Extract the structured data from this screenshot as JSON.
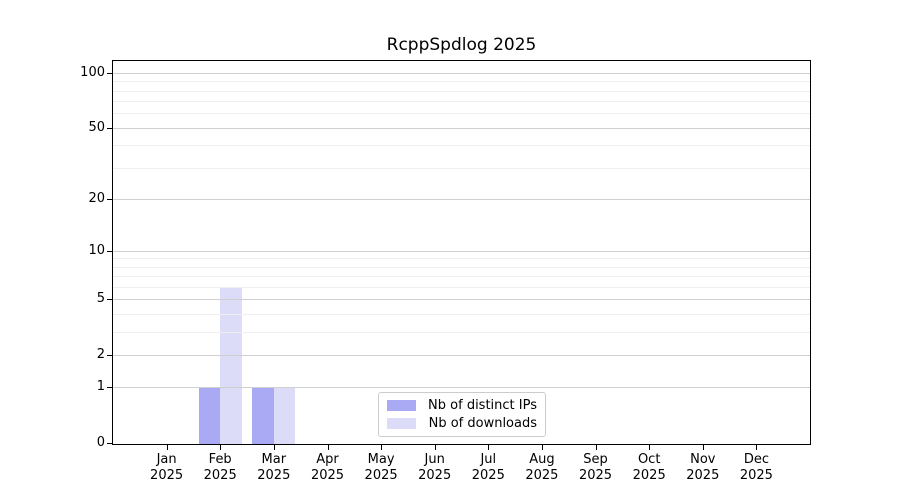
{
  "title": "RcppSpdlog 2025",
  "colors": {
    "distinct_ips": "#aaaaf4",
    "downloads": "#dcdcf8",
    "grid_major": "#cfcfcf",
    "grid_minor": "#efefef",
    "axis": "#000000",
    "background": "#ffffff",
    "legend_border": "#cccccc"
  },
  "legend": {
    "items": [
      {
        "label": "Nb of distinct IPs",
        "color": "#aaaaf4"
      },
      {
        "label": "Nb of downloads",
        "color": "#dcdcf8"
      }
    ]
  },
  "chart_data": {
    "type": "bar",
    "title": "RcppSpdlog 2025",
    "xlabel": "",
    "ylabel": "",
    "x_tick_months": [
      "Jan",
      "Feb",
      "Mar",
      "Apr",
      "May",
      "Jun",
      "Jul",
      "Aug",
      "Sep",
      "Oct",
      "Nov",
      "Dec"
    ],
    "x_tick_year": "2025",
    "categories": [
      "Jan 2025",
      "Feb 2025",
      "Mar 2025",
      "Apr 2025",
      "May 2025",
      "Jun 2025",
      "Jul 2025",
      "Aug 2025",
      "Sep 2025",
      "Oct 2025",
      "Nov 2025",
      "Dec 2025"
    ],
    "series": [
      {
        "name": "Nb of distinct IPs",
        "color": "#aaaaf4",
        "values": [
          0,
          1,
          1,
          0,
          0,
          0,
          0,
          0,
          0,
          0,
          0,
          0
        ]
      },
      {
        "name": "Nb of downloads",
        "color": "#dcdcf8",
        "values": [
          0,
          6,
          1,
          0,
          0,
          0,
          0,
          0,
          0,
          0,
          0,
          0
        ]
      }
    ],
    "yscale": "log1p",
    "ylim": [
      0,
      116
    ],
    "y_major_ticks": [
      0,
      1,
      2,
      5,
      10,
      20,
      50,
      100
    ],
    "y_minor_gridlines": [
      3,
      4,
      6,
      7,
      8,
      9,
      30,
      40,
      60,
      70,
      80,
      90
    ],
    "grid": true,
    "grid_on_top_of_bars": true,
    "legend_position": "lower center"
  }
}
